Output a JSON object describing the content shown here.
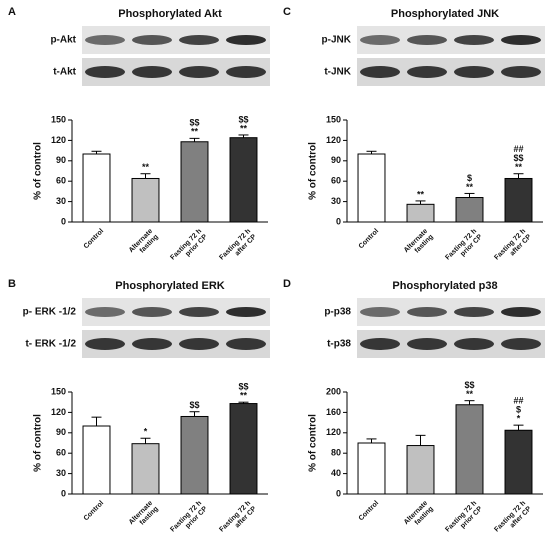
{
  "chart_data": [
    {
      "type": "bar",
      "panel": "A",
      "title": "Phosphorylated Akt",
      "blots": [
        "p-Akt",
        "t-Akt"
      ],
      "y_label": "% of control",
      "categories": [
        [
          "Control"
        ],
        [
          "Alternate",
          "fasting"
        ],
        [
          "Fasting 72 h",
          "prior CP"
        ],
        [
          "Fasting 72 h",
          "after CP"
        ]
      ],
      "values": [
        100,
        64,
        118,
        124
      ],
      "errors": [
        4,
        7,
        5,
        4
      ],
      "annotations": [
        [],
        [
          "**"
        ],
        [
          "$$",
          "**"
        ],
        [
          "$$",
          "**"
        ]
      ],
      "colors": [
        "#ffffff",
        "#c0c0c0",
        "#808080",
        "#333333"
      ],
      "ylim": [
        0,
        150
      ],
      "yticks": [
        0,
        30,
        60,
        90,
        120,
        150
      ]
    },
    {
      "type": "bar",
      "panel": "B",
      "title": "Phosphorylated ERK",
      "blots": [
        "p- ERK -1/2",
        "t- ERK -1/2"
      ],
      "y_label": "% of control",
      "categories": [
        [
          "Control"
        ],
        [
          "Alternate",
          "fasting"
        ],
        [
          "Fasting 72 h",
          "prior CP"
        ],
        [
          "Fasting 72 h",
          "after CP"
        ]
      ],
      "values": [
        100,
        74,
        114,
        133
      ],
      "errors": [
        13,
        8,
        7,
        2
      ],
      "annotations": [
        [],
        [
          "*"
        ],
        [
          "$$"
        ],
        [
          "$$",
          "**"
        ]
      ],
      "colors": [
        "#ffffff",
        "#c0c0c0",
        "#808080",
        "#333333"
      ],
      "ylim": [
        0,
        150
      ],
      "yticks": [
        0,
        30,
        60,
        90,
        120,
        150
      ]
    },
    {
      "type": "bar",
      "panel": "C",
      "title": "Phosphorylated JNK",
      "blots": [
        "p-JNK",
        "t-JNK"
      ],
      "y_label": "% of control",
      "categories": [
        [
          "Control"
        ],
        [
          "Alternate",
          "fasting"
        ],
        [
          "Fasting 72 h",
          "prior CP"
        ],
        [
          "Fasting 72 h",
          "after CP"
        ]
      ],
      "values": [
        100,
        26,
        36,
        64
      ],
      "errors": [
        4,
        5,
        6,
        7
      ],
      "annotations": [
        [],
        [
          "**"
        ],
        [
          "$",
          "**"
        ],
        [
          "##",
          "$$",
          "**"
        ]
      ],
      "colors": [
        "#ffffff",
        "#c0c0c0",
        "#808080",
        "#333333"
      ],
      "ylim": [
        0,
        150
      ],
      "yticks": [
        0,
        30,
        60,
        90,
        120,
        150
      ]
    },
    {
      "type": "bar",
      "panel": "D",
      "title": "Phosphorylated p38",
      "blots": [
        "p-p38",
        "t-p38"
      ],
      "y_label": "% of control",
      "categories": [
        [
          "Control"
        ],
        [
          "Alternate",
          "fasting"
        ],
        [
          "Fasting 72 h",
          "prior CP"
        ],
        [
          "Fasting 72 h",
          "after CP"
        ]
      ],
      "values": [
        100,
        95,
        175,
        125
      ],
      "errors": [
        8,
        20,
        8,
        10
      ],
      "annotations": [
        [],
        [],
        [
          "$$",
          "**"
        ],
        [
          "##",
          "$",
          "*"
        ]
      ],
      "colors": [
        "#ffffff",
        "#c0c0c0",
        "#808080",
        "#333333"
      ],
      "ylim": [
        0,
        200
      ],
      "yticks": [
        0,
        40,
        80,
        120,
        160,
        200
      ]
    }
  ]
}
